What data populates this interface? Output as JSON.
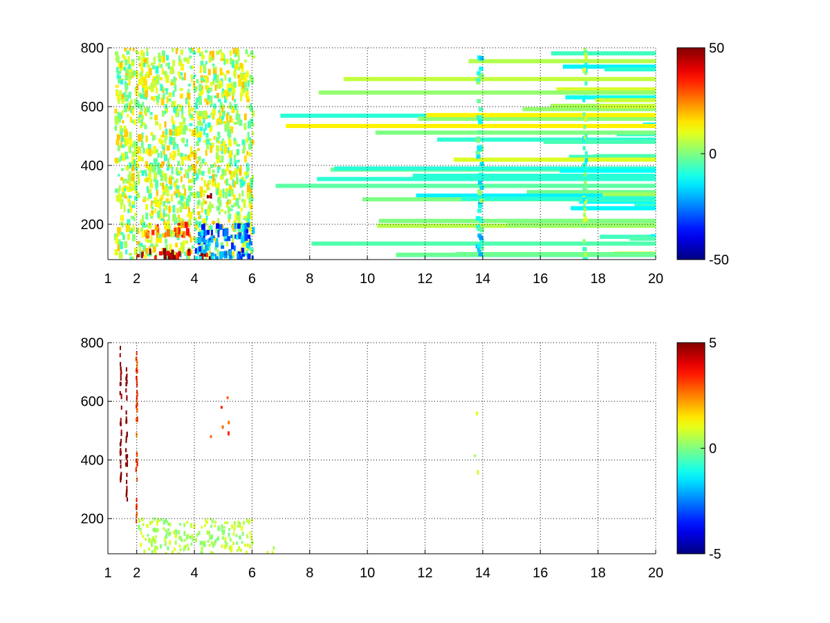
{
  "chart_data": [
    {
      "type": "heatmap",
      "title": "",
      "xlabel": "",
      "ylabel": "",
      "xlim": [
        1,
        20
      ],
      "ylim": [
        80,
        800
      ],
      "x_ticks": [
        1,
        2,
        4,
        6,
        8,
        10,
        12,
        14,
        16,
        18,
        20
      ],
      "y_ticks": [
        200,
        400,
        600,
        800
      ],
      "grid": true,
      "colormap": "jet",
      "colorbar": {
        "min": -50,
        "max": 50,
        "ticks": [
          "50",
          "0",
          "-50"
        ]
      },
      "regions": [
        {
          "description": "dense broadband activity",
          "x_range": [
            1.2,
            6
          ],
          "y_range": [
            80,
            800
          ],
          "typical_value": 5
        },
        {
          "description": "strong positive band near bottom",
          "x_range": [
            2,
            4.5
          ],
          "y_range": [
            80,
            110
          ],
          "typical_value": 45
        },
        {
          "description": "positive band",
          "x_range": [
            2,
            4
          ],
          "y_range": [
            160,
            200
          ],
          "typical_value": 25
        },
        {
          "description": "negative band",
          "x_range": [
            4,
            6
          ],
          "y_range": [
            80,
            200
          ],
          "typical_value": -25
        },
        {
          "description": "hot spot",
          "x_range": [
            4.4,
            4.55
          ],
          "y_range": [
            290,
            310
          ],
          "typical_value": 45
        },
        {
          "description": "sparse scattered columns",
          "x_range": [
            6,
            20
          ],
          "y_range": [
            80,
            800
          ],
          "typical_value": 0
        },
        {
          "description": "persistent column",
          "x_range": [
            13.75,
            13.9
          ],
          "y_range": [
            80,
            800
          ],
          "typical_value": -10
        },
        {
          "description": "persistent column",
          "x_range": [
            17.45,
            17.55
          ],
          "y_range": [
            80,
            800
          ],
          "typical_value": -3
        }
      ]
    },
    {
      "type": "heatmap",
      "title": "",
      "xlabel": "",
      "ylabel": "",
      "xlim": [
        1,
        20
      ],
      "ylim": [
        80,
        800
      ],
      "x_ticks": [
        1,
        2,
        4,
        6,
        8,
        10,
        12,
        14,
        16,
        18,
        20
      ],
      "y_ticks": [
        200,
        400,
        600,
        800
      ],
      "grid": true,
      "colormap": "jet",
      "colorbar": {
        "min": -5,
        "max": 5,
        "ticks": [
          "5",
          "0",
          "-5"
        ]
      },
      "regions": [
        {
          "description": "near-zero values at low frequencies",
          "x_range": [
            2,
            6
          ],
          "y_range": [
            80,
            200
          ],
          "typical_value": 0.5
        },
        {
          "description": "sparse near-zero values",
          "x_range": [
            6,
            7.2
          ],
          "y_range": [
            80,
            100
          ],
          "typical_value": 0.5
        },
        {
          "description": "thin vertical streak",
          "x_range": [
            1.4,
            1.45
          ],
          "y_range": [
            320,
            790
          ],
          "typical_value": 5
        },
        {
          "description": "thin vertical streak",
          "x_range": [
            1.6,
            1.65
          ],
          "y_range": [
            250,
            760
          ],
          "typical_value": 5
        },
        {
          "description": "thin vertical streak",
          "x_range": [
            1.95,
            2
          ],
          "y_range": [
            170,
            800
          ],
          "typical_value": 3
        },
        {
          "description": "isolated points",
          "x_range": [
            4.3,
            5.3
          ],
          "y_range": [
            240,
            680
          ],
          "typical_value": 3
        },
        {
          "description": "isolated points",
          "x_range": [
            13.6,
            13.9
          ],
          "y_range": [
            300,
            600
          ],
          "typical_value": 0.5
        }
      ]
    }
  ]
}
